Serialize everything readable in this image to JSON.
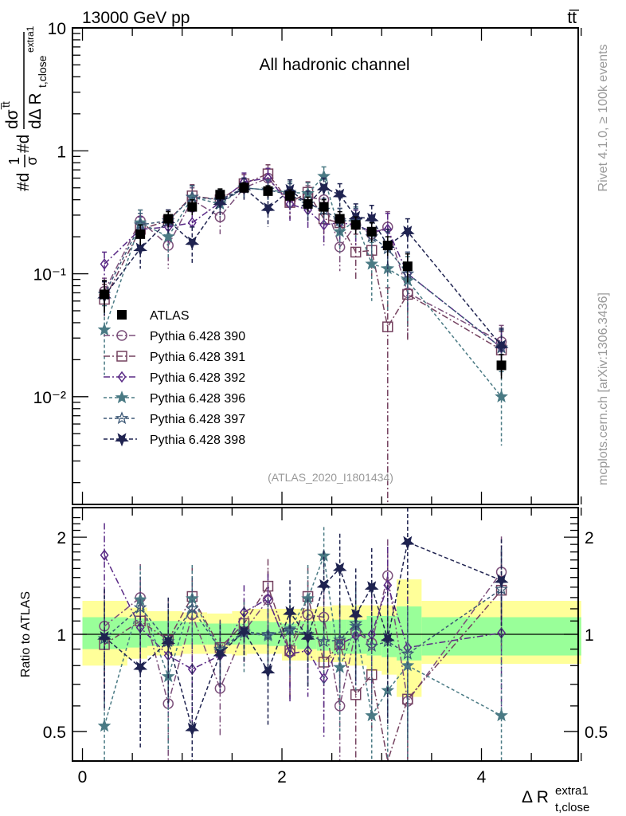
{
  "chart_data": [
    {
      "type": "scatter",
      "panel": "main",
      "title": "All hadronic channel",
      "header_left": "13000 GeV pp",
      "header_right": "tt̅",
      "xlabel": "Δ R",
      "xlabel_sup": "extra1",
      "xlabel_sub": "t,close",
      "ylabel": "#d¹⁄σ#d dσᵗᵗ̄ / dΔ R t,close extra1",
      "ylabel_parts": {
        "pre": "#d",
        "frac_num": "1",
        "frac_den": "σ",
        "mid": "#d",
        "num": "dσ",
        "num_sup": "t̅t",
        "den": "dΔ R",
        "den_sub": "t,close",
        "den_sup": "extra1"
      },
      "yscale": "log",
      "ylim": [
        0.00133,
        10
      ],
      "xlim": [
        -0.1,
        4.97
      ],
      "yticks": [
        {
          "v": 10,
          "label": "10"
        },
        {
          "v": 1,
          "label": "1"
        },
        {
          "v": 0.1,
          "label": "10⁻¹"
        },
        {
          "v": 0.01,
          "label": "10⁻²"
        }
      ],
      "watermark": "(ATLAS_2020_I1801434)",
      "side_text_top": "Rivet 4.1.0, ≥ 100k events",
      "side_text_bottom": "mcplots.cern.ch [arXiv:1306.3436]",
      "legend_position": "center-left",
      "x": [
        0.22,
        0.58,
        0.86,
        1.1,
        1.38,
        1.62,
        1.86,
        2.08,
        2.26,
        2.42,
        2.58,
        2.74,
        2.9,
        3.06,
        3.26,
        4.2
      ],
      "series": [
        {
          "name": "ATLAS",
          "marker": "square-filled",
          "color": "#000000",
          "dash": "none",
          "values": [
            0.068,
            0.21,
            0.28,
            0.35,
            0.44,
            0.5,
            0.47,
            0.43,
            0.37,
            0.35,
            0.28,
            0.25,
            0.22,
            0.17,
            0.115,
            0.018
          ],
          "err": [
            0.02,
            0.04,
            0.04,
            0.05,
            0.05,
            0.05,
            0.05,
            0.05,
            0.05,
            0.05,
            0.04,
            0.04,
            0.04,
            0.03,
            0.03,
            0.004
          ]
        },
        {
          "name": "Pythia 6.428 390",
          "marker": "circle-open",
          "color": "#7b4f7a",
          "dash": "8,3,2,3",
          "values": [
            0.072,
            0.27,
            0.17,
            0.4,
            0.29,
            0.5,
            0.6,
            0.38,
            0.42,
            0.4,
            0.165,
            0.25,
            0.21,
            0.24,
            0.07,
            0.028
          ],
          "err": [
            0.02,
            0.06,
            0.06,
            0.1,
            0.08,
            0.1,
            0.12,
            0.1,
            0.1,
            0.1,
            0.06,
            0.08,
            0.08,
            0.08,
            0.04,
            0.01
          ]
        },
        {
          "name": "Pythia 6.428 391",
          "marker": "square-open",
          "color": "#74415f",
          "dash": "8,3,2,3",
          "values": [
            0.062,
            0.23,
            0.27,
            0.43,
            0.4,
            0.54,
            0.65,
            0.38,
            0.46,
            0.28,
            0.26,
            0.15,
            0.155,
            0.037,
            0.068,
            0.024
          ],
          "err": [
            0.02,
            0.06,
            0.06,
            0.1,
            0.08,
            0.1,
            0.12,
            0.1,
            0.1,
            0.1,
            0.08,
            0.06,
            0.06,
            0.04,
            0.04,
            0.01
          ]
        },
        {
          "name": "Pythia 6.428 392",
          "marker": "diamond-open",
          "color": "#5a2a86",
          "dash": "8,3,2,3",
          "values": [
            0.12,
            0.23,
            0.24,
            0.26,
            0.38,
            0.56,
            0.6,
            0.37,
            0.33,
            0.25,
            0.26,
            0.25,
            0.22,
            0.23,
            0.1,
            0.025
          ],
          "err": [
            0.03,
            0.06,
            0.06,
            0.06,
            0.08,
            0.1,
            0.12,
            0.1,
            0.1,
            0.08,
            0.08,
            0.08,
            0.08,
            0.08,
            0.05,
            0.01
          ]
        },
        {
          "name": "Pythia 6.428 396",
          "marker": "star-filled-small",
          "color": "#4a7a84",
          "dash": "4,3",
          "values": [
            0.035,
            0.26,
            0.2,
            0.42,
            0.37,
            0.5,
            0.48,
            0.46,
            0.45,
            0.62,
            0.22,
            0.27,
            0.12,
            0.11,
            0.088,
            0.01
          ],
          "err": [
            0.02,
            0.07,
            0.07,
            0.1,
            0.08,
            0.1,
            0.1,
            0.1,
            0.1,
            0.12,
            0.07,
            0.08,
            0.06,
            0.06,
            0.05,
            0.006
          ]
        },
        {
          "name": "Pythia 6.428 397",
          "marker": "star-open",
          "color": "#3b5775",
          "dash": "4,3",
          "values": [
            0.068,
            0.25,
            0.27,
            0.42,
            0.4,
            0.5,
            0.48,
            0.44,
            0.37,
            0.33,
            0.27,
            0.27,
            0.2,
            0.16,
            0.1,
            0.025
          ],
          "err": [
            0.02,
            0.06,
            0.06,
            0.1,
            0.08,
            0.1,
            0.1,
            0.1,
            0.1,
            0.08,
            0.07,
            0.07,
            0.06,
            0.06,
            0.05,
            0.01
          ]
        },
        {
          "name": "Pythia 6.428 398",
          "marker": "triangle-down-filled",
          "color": "#1f2350",
          "dash": "5,3",
          "values": [
            0.066,
            0.16,
            0.27,
            0.18,
            0.38,
            0.5,
            0.34,
            0.48,
            0.37,
            0.5,
            0.44,
            0.29,
            0.28,
            0.17,
            0.22,
            0.026
          ],
          "err": [
            0.02,
            0.05,
            0.06,
            0.06,
            0.08,
            0.1,
            0.1,
            0.1,
            0.1,
            0.1,
            0.1,
            0.08,
            0.08,
            0.06,
            0.06,
            0.01
          ]
        }
      ]
    },
    {
      "type": "scatter",
      "panel": "ratio",
      "ylabel": "Ratio to ATLAS",
      "yscale": "log",
      "ylim": [
        0.405,
        2.47
      ],
      "yticks": [
        {
          "v": 2,
          "label": "2"
        },
        {
          "v": 1,
          "label": "1"
        },
        {
          "v": 0.5,
          "label": "0.5"
        }
      ],
      "xticks": [
        {
          "v": 0,
          "label": "0"
        },
        {
          "v": 2,
          "label": "2"
        },
        {
          "v": 4,
          "label": "4"
        }
      ],
      "bands": {
        "edges": [
          0.0,
          0.45,
          0.65,
          1.0,
          1.25,
          1.5,
          1.65,
          1.85,
          2.0,
          2.15,
          2.35,
          2.5,
          2.65,
          2.85,
          3.0,
          3.15,
          3.4,
          5.0
        ],
        "inner_up": [
          1.13,
          1.12,
          1.1,
          1.09,
          1.08,
          1.08,
          1.1,
          1.09,
          1.08,
          1.1,
          1.1,
          1.11,
          1.11,
          1.14,
          1.14,
          1.22,
          1.13
        ],
        "inner_down": [
          0.9,
          0.91,
          0.92,
          0.93,
          0.93,
          0.93,
          0.93,
          0.92,
          0.92,
          0.9,
          0.89,
          0.87,
          0.87,
          0.86,
          0.85,
          0.83,
          0.86
        ],
        "outer_up": [
          1.27,
          1.21,
          1.18,
          1.17,
          1.16,
          1.18,
          1.2,
          1.2,
          1.2,
          1.2,
          1.22,
          1.23,
          1.23,
          1.23,
          1.23,
          1.48,
          1.27
        ],
        "outer_down": [
          0.8,
          0.84,
          0.86,
          0.87,
          0.87,
          0.86,
          0.87,
          0.87,
          0.83,
          0.83,
          0.82,
          0.82,
          0.8,
          0.77,
          0.75,
          0.64,
          0.81
        ],
        "inner_color": "#99ff99",
        "outer_color": "#ffff99"
      },
      "x": [
        0.22,
        0.58,
        0.86,
        1.1,
        1.38,
        1.62,
        1.86,
        2.08,
        2.26,
        2.42,
        2.58,
        2.74,
        2.9,
        3.06,
        3.26,
        4.2
      ],
      "series": [
        {
          "name": "Pythia 6.428 390",
          "values": [
            1.06,
            1.3,
            0.61,
            1.15,
            0.68,
            1.02,
            1.28,
            0.88,
            1.15,
            1.13,
            0.6,
            1.02,
            0.94,
            1.52,
            0.62,
            1.56
          ],
          "err": [
            0.3,
            0.35,
            0.3,
            0.35,
            0.2,
            0.2,
            0.3,
            0.25,
            0.3,
            0.3,
            0.25,
            0.3,
            0.3,
            0.45,
            0.3,
            0.45
          ]
        },
        {
          "name": "Pythia 6.428 391",
          "values": [
            0.93,
            1.1,
            0.96,
            1.31,
            0.91,
            1.08,
            1.41,
            0.89,
            1.31,
            0.82,
            0.93,
            0.65,
            0.75,
            0.22,
            0.63,
            1.37
          ],
          "err": [
            0.3,
            0.3,
            0.3,
            0.3,
            0.2,
            0.2,
            0.3,
            0.25,
            0.3,
            0.25,
            0.3,
            0.25,
            0.25,
            0.2,
            0.25,
            0.45
          ]
        },
        {
          "name": "Pythia 6.428 392",
          "values": [
            1.76,
            1.05,
            0.86,
            0.78,
            0.86,
            1.17,
            1.29,
            0.87,
            0.89,
            0.73,
            0.93,
            0.99,
            1.0,
            1.42,
            0.91,
            1.01
          ],
          "err": [
            0.45,
            0.3,
            0.3,
            0.25,
            0.2,
            0.25,
            0.25,
            0.25,
            0.25,
            0.25,
            0.25,
            0.3,
            0.35,
            0.45,
            0.4,
            0.45
          ]
        },
        {
          "name": "Pythia 6.428 396",
          "values": [
            0.52,
            1.28,
            0.74,
            1.29,
            0.89,
            1.01,
            0.99,
            1.04,
            1.29,
            1.75,
            0.79,
            1.06,
            0.56,
            0.67,
            0.8,
            0.56
          ],
          "err": [
            0.3,
            0.35,
            0.3,
            0.35,
            0.2,
            0.25,
            0.3,
            0.3,
            0.35,
            0.4,
            0.3,
            0.4,
            0.3,
            0.35,
            0.4,
            0.4
          ]
        },
        {
          "name": "Pythia 6.428 397",
          "values": [
            0.97,
            1.21,
            0.95,
            1.2,
            0.9,
            1.02,
            1.0,
            1.03,
            1.0,
            0.95,
            0.96,
            1.08,
            0.92,
            0.95,
            0.87,
            1.38
          ],
          "err": [
            0.35,
            0.3,
            0.3,
            0.3,
            0.2,
            0.2,
            0.25,
            0.25,
            0.3,
            0.25,
            0.3,
            0.35,
            0.35,
            0.4,
            0.4,
            0.45
          ]
        },
        {
          "name": "Pythia 6.428 398",
          "values": [
            0.98,
            0.79,
            0.95,
            0.51,
            0.87,
            1.02,
            0.77,
            1.17,
            0.98,
            1.42,
            1.6,
            1.15,
            1.4,
            0.97,
            1.93,
            1.47
          ],
          "err": [
            0.4,
            0.35,
            0.35,
            0.3,
            0.2,
            0.2,
            0.25,
            0.3,
            0.3,
            0.4,
            0.45,
            0.45,
            0.45,
            0.45,
            0.6,
            0.5
          ]
        }
      ]
    }
  ]
}
